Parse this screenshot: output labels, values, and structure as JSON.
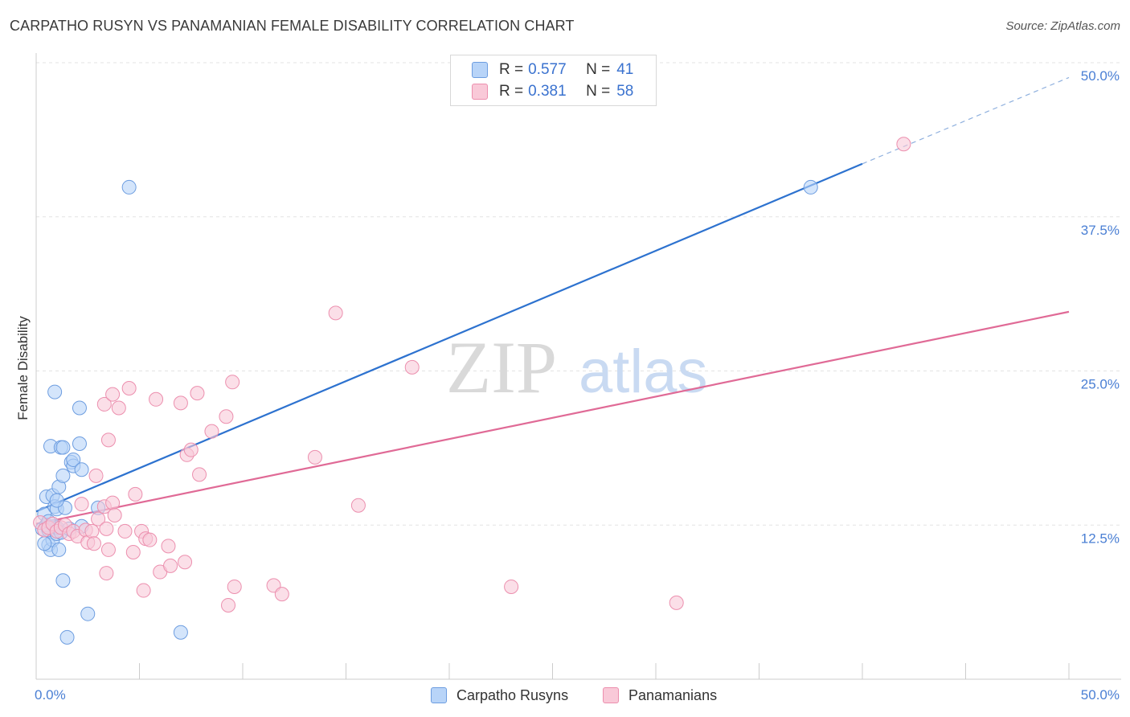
{
  "title": "CARPATHO RUSYN VS PANAMANIAN FEMALE DISABILITY CORRELATION CHART",
  "source": "Source: ZipAtlas.com",
  "watermark": {
    "zip": "ZIP",
    "atlas": "atlas"
  },
  "legend": {
    "r_key": "R =",
    "n_key": "N =",
    "rows": [
      {
        "r": "0.577",
        "n": "41",
        "fill": "#b8d4f8",
        "stroke": "#6d9de0"
      },
      {
        "r": "0.381",
        "n": "58",
        "fill": "#f9c9d8",
        "stroke": "#ec8fae"
      }
    ]
  },
  "bottom_legend": {
    "items": [
      {
        "label": "Carpatho Rusyns",
        "fill": "#b8d4f8",
        "stroke": "#6d9de0"
      },
      {
        "label": "Panamanians",
        "fill": "#f9c9d8",
        "stroke": "#ec8fae"
      }
    ]
  },
  "chart_data": {
    "type": "scatter",
    "title": "CARPATHO RUSYN VS PANAMANIAN FEMALE DISABILITY CORRELATION CHART",
    "xlabel": "",
    "ylabel": "Female Disability",
    "xlim": [
      0,
      50
    ],
    "ylim": [
      0,
      50
    ],
    "x_tick_labels": [
      {
        "value": 0,
        "label": "0.0%"
      },
      {
        "value": 50,
        "label": "50.0%"
      }
    ],
    "y_tick_labels": [
      {
        "value": 12.5,
        "label": "12.5%"
      },
      {
        "value": 25,
        "label": "25.0%"
      },
      {
        "value": 37.5,
        "label": "37.5%"
      },
      {
        "value": 50,
        "label": "50.0%"
      }
    ],
    "series": [
      {
        "name": "Carpatho Rusyns",
        "color": "#6d9de0",
        "fill": "#b8d4f8",
        "line_color": "#2d72cf",
        "trend": {
          "x0": 0,
          "y0": 13.6,
          "x1": 40,
          "y1": 41.8,
          "dashed_to_x": 50,
          "dashed_to_y": 48.8
        },
        "points": [
          [
            0.3,
            12.2
          ],
          [
            0.4,
            13.4
          ],
          [
            0.5,
            14.8
          ],
          [
            0.5,
            12.5
          ],
          [
            0.6,
            10.9
          ],
          [
            0.7,
            10.5
          ],
          [
            0.8,
            11.3
          ],
          [
            0.6,
            12.1
          ],
          [
            0.9,
            12.4
          ],
          [
            1.0,
            11.8
          ],
          [
            0.7,
            18.9
          ],
          [
            0.8,
            14.9
          ],
          [
            0.9,
            23.3
          ],
          [
            0.9,
            14.0
          ],
          [
            1.0,
            13.8
          ],
          [
            1.1,
            15.6
          ],
          [
            1.0,
            12.3
          ],
          [
            1.2,
            18.8
          ],
          [
            1.3,
            18.8
          ],
          [
            1.3,
            16.5
          ],
          [
            1.2,
            11.9
          ],
          [
            1.4,
            13.9
          ],
          [
            1.6,
            12.2
          ],
          [
            1.3,
            8.0
          ],
          [
            1.7,
            17.6
          ],
          [
            1.8,
            17.3
          ],
          [
            1.8,
            17.8
          ],
          [
            2.1,
            19.1
          ],
          [
            2.2,
            17.0
          ],
          [
            2.1,
            22.0
          ],
          [
            2.5,
            5.3
          ],
          [
            2.2,
            12.4
          ],
          [
            1.1,
            10.5
          ],
          [
            1.5,
            3.4
          ],
          [
            1.0,
            14.5
          ],
          [
            3.0,
            13.9
          ],
          [
            4.5,
            39.9
          ],
          [
            7.0,
            3.8
          ],
          [
            37.5,
            39.9
          ],
          [
            0.4,
            11.0
          ],
          [
            0.6,
            12.8
          ]
        ]
      },
      {
        "name": "Panamanians",
        "color": "#ec8fae",
        "fill": "#f9c9d8",
        "line_color": "#e06a96",
        "trend": {
          "x0": 0,
          "y0": 12.6,
          "x1": 50,
          "y1": 29.8
        },
        "points": [
          [
            0.2,
            12.7
          ],
          [
            0.4,
            12.1
          ],
          [
            0.6,
            12.3
          ],
          [
            0.8,
            12.6
          ],
          [
            1.0,
            12.0
          ],
          [
            1.2,
            12.3
          ],
          [
            1.4,
            12.5
          ],
          [
            1.6,
            11.8
          ],
          [
            1.8,
            12.0
          ],
          [
            2.0,
            11.6
          ],
          [
            2.2,
            14.2
          ],
          [
            2.4,
            12.1
          ],
          [
            2.5,
            11.1
          ],
          [
            2.7,
            12.0
          ],
          [
            2.8,
            11.0
          ],
          [
            2.9,
            16.5
          ],
          [
            3.0,
            13.0
          ],
          [
            3.3,
            14.0
          ],
          [
            3.4,
            8.6
          ],
          [
            3.5,
            10.5
          ],
          [
            3.7,
            14.3
          ],
          [
            3.8,
            13.3
          ],
          [
            3.3,
            22.3
          ],
          [
            3.4,
            12.2
          ],
          [
            3.5,
            19.4
          ],
          [
            3.7,
            23.1
          ],
          [
            4.0,
            22.0
          ],
          [
            4.3,
            12.0
          ],
          [
            4.5,
            23.6
          ],
          [
            4.7,
            10.3
          ],
          [
            4.8,
            15.0
          ],
          [
            5.1,
            12.0
          ],
          [
            5.2,
            7.2
          ],
          [
            5.3,
            11.4
          ],
          [
            5.5,
            11.3
          ],
          [
            5.8,
            22.7
          ],
          [
            6.0,
            8.7
          ],
          [
            6.4,
            10.8
          ],
          [
            6.5,
            9.2
          ],
          [
            7.2,
            9.5
          ],
          [
            7.0,
            22.4
          ],
          [
            7.3,
            18.2
          ],
          [
            7.5,
            18.6
          ],
          [
            7.8,
            23.2
          ],
          [
            7.9,
            16.6
          ],
          [
            8.5,
            20.1
          ],
          [
            9.3,
            6.0
          ],
          [
            9.2,
            21.3
          ],
          [
            9.5,
            24.1
          ],
          [
            9.6,
            7.5
          ],
          [
            11.5,
            7.6
          ],
          [
            11.9,
            6.9
          ],
          [
            13.5,
            18.0
          ],
          [
            14.5,
            29.7
          ],
          [
            15.6,
            14.1
          ],
          [
            18.2,
            25.3
          ],
          [
            23.0,
            7.5
          ],
          [
            31.0,
            6.2
          ]
        ]
      }
    ],
    "extra_points": [
      {
        "series": "Panamanians",
        "x": 42.0,
        "y": 43.4
      }
    ]
  }
}
